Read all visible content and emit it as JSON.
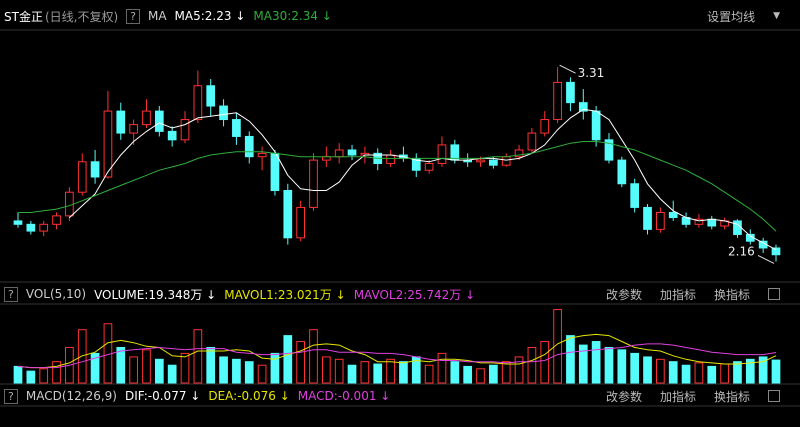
{
  "chart_data": [
    {
      "type": "candlestick",
      "title": "ST金正",
      "subtitle": "(日线,不复权)",
      "help": "?",
      "indicator": "MA",
      "settings": "设置均线",
      "up_color": "#ff3232",
      "down_color": "#54fcfc",
      "ylim": [
        2.08,
        3.53
      ],
      "candles": [
        [
          2.4,
          2.45,
          2.36,
          2.38
        ],
        [
          2.38,
          2.4,
          2.32,
          2.34
        ],
        [
          2.34,
          2.4,
          2.31,
          2.38
        ],
        [
          2.38,
          2.45,
          2.35,
          2.43
        ],
        [
          2.43,
          2.6,
          2.4,
          2.57
        ],
        [
          2.57,
          2.8,
          2.55,
          2.75
        ],
        [
          2.75,
          2.82,
          2.62,
          2.66
        ],
        [
          2.66,
          3.17,
          2.65,
          3.05
        ],
        [
          3.05,
          3.1,
          2.88,
          2.92
        ],
        [
          2.92,
          3.0,
          2.85,
          2.97
        ],
        [
          2.97,
          3.12,
          2.95,
          3.05
        ],
        [
          3.05,
          3.08,
          2.9,
          2.93
        ],
        [
          2.93,
          2.96,
          2.84,
          2.88
        ],
        [
          2.88,
          3.05,
          2.86,
          3.0
        ],
        [
          3.0,
          3.29,
          2.98,
          3.2
        ],
        [
          3.2,
          3.24,
          3.02,
          3.08
        ],
        [
          3.08,
          3.12,
          2.96,
          3.0
        ],
        [
          3.0,
          3.04,
          2.85,
          2.9
        ],
        [
          2.9,
          2.93,
          2.74,
          2.78
        ],
        [
          2.78,
          2.84,
          2.7,
          2.8
        ],
        [
          2.8,
          2.82,
          2.55,
          2.58
        ],
        [
          2.58,
          2.62,
          2.26,
          2.3
        ],
        [
          2.3,
          2.52,
          2.28,
          2.48
        ],
        [
          2.48,
          2.8,
          2.46,
          2.76
        ],
        [
          2.76,
          2.84,
          2.72,
          2.78
        ],
        [
          2.78,
          2.86,
          2.74,
          2.82
        ],
        [
          2.82,
          2.85,
          2.76,
          2.79
        ],
        [
          2.79,
          2.84,
          2.74,
          2.8
        ],
        [
          2.8,
          2.83,
          2.7,
          2.74
        ],
        [
          2.74,
          2.82,
          2.72,
          2.79
        ],
        [
          2.79,
          2.84,
          2.75,
          2.77
        ],
        [
          2.77,
          2.8,
          2.66,
          2.7
        ],
        [
          2.7,
          2.76,
          2.68,
          2.74
        ],
        [
          2.74,
          2.9,
          2.72,
          2.85
        ],
        [
          2.85,
          2.88,
          2.74,
          2.76
        ],
        [
          2.76,
          2.8,
          2.72,
          2.75
        ],
        [
          2.75,
          2.78,
          2.72,
          2.76
        ],
        [
          2.76,
          2.78,
          2.71,
          2.73
        ],
        [
          2.73,
          2.8,
          2.72,
          2.78
        ],
        [
          2.78,
          2.85,
          2.76,
          2.82
        ],
        [
          2.82,
          2.95,
          2.8,
          2.92
        ],
        [
          2.92,
          3.05,
          2.9,
          3.0
        ],
        [
          3.0,
          3.31,
          2.98,
          3.22
        ],
        [
          3.22,
          3.25,
          3.05,
          3.1
        ],
        [
          3.1,
          3.18,
          3.0,
          3.05
        ],
        [
          3.05,
          3.08,
          2.84,
          2.88
        ],
        [
          2.88,
          2.92,
          2.74,
          2.76
        ],
        [
          2.76,
          2.78,
          2.6,
          2.62
        ],
        [
          2.62,
          2.65,
          2.45,
          2.48
        ],
        [
          2.48,
          2.5,
          2.32,
          2.35
        ],
        [
          2.35,
          2.48,
          2.33,
          2.45
        ],
        [
          2.45,
          2.52,
          2.4,
          2.42
        ],
        [
          2.42,
          2.45,
          2.36,
          2.38
        ],
        [
          2.38,
          2.44,
          2.36,
          2.41
        ],
        [
          2.41,
          2.43,
          2.35,
          2.37
        ],
        [
          2.37,
          2.42,
          2.35,
          2.4
        ],
        [
          2.4,
          2.41,
          2.3,
          2.32
        ],
        [
          2.32,
          2.35,
          2.26,
          2.28
        ],
        [
          2.28,
          2.3,
          2.21,
          2.24
        ],
        [
          2.24,
          2.26,
          2.16,
          2.2
        ]
      ],
      "series": [
        {
          "name": "MA5:2.23 ↓",
          "color": "#ffffff",
          "values": [
            null,
            null,
            null,
            null,
            2.42,
            2.49,
            2.56,
            2.69,
            2.79,
            2.87,
            2.93,
            2.98,
            2.95,
            2.97,
            3.01,
            3.02,
            3.03,
            3.04,
            2.99,
            2.91,
            2.81,
            2.67,
            2.59,
            2.58,
            2.58,
            2.63,
            2.73,
            2.79,
            2.79,
            2.79,
            2.78,
            2.76,
            2.75,
            2.77,
            2.76,
            2.76,
            2.77,
            2.77,
            2.76,
            2.77,
            2.8,
            2.85,
            2.94,
            3.01,
            3.06,
            3.05,
            3.0,
            2.88,
            2.76,
            2.62,
            2.53,
            2.46,
            2.42,
            2.4,
            2.41,
            2.4,
            2.38,
            2.31,
            2.27,
            2.23
          ]
        },
        {
          "name": "MA30:2.34 ↓",
          "color": "#2fae3a",
          "values": [
            2.45,
            2.45,
            2.46,
            2.47,
            2.49,
            2.52,
            2.55,
            2.58,
            2.61,
            2.64,
            2.67,
            2.7,
            2.72,
            2.74,
            2.77,
            2.79,
            2.8,
            2.81,
            2.81,
            2.81,
            2.8,
            2.79,
            2.78,
            2.78,
            2.78,
            2.78,
            2.78,
            2.78,
            2.77,
            2.77,
            2.77,
            2.77,
            2.77,
            2.77,
            2.77,
            2.77,
            2.77,
            2.78,
            2.78,
            2.79,
            2.8,
            2.82,
            2.84,
            2.86,
            2.87,
            2.87,
            2.86,
            2.84,
            2.82,
            2.79,
            2.76,
            2.73,
            2.7,
            2.66,
            2.62,
            2.57,
            2.52,
            2.47,
            2.41,
            2.34
          ]
        }
      ]
    },
    {
      "type": "bar",
      "title": "VOL(5,10)",
      "help": "?",
      "volume_label": "VOLUME:19.348万 ↓",
      "buttons": [
        "改参数",
        "加指标",
        "换指标"
      ],
      "ylim": [
        0,
        65
      ],
      "values": [
        14,
        10,
        12,
        18,
        30,
        45,
        25,
        50,
        30,
        22,
        28,
        20,
        15,
        25,
        45,
        30,
        22,
        20,
        18,
        15,
        25,
        40,
        35,
        45,
        22,
        20,
        15,
        18,
        16,
        20,
        18,
        22,
        15,
        25,
        18,
        14,
        12,
        15,
        18,
        22,
        30,
        35,
        62,
        40,
        32,
        35,
        30,
        28,
        25,
        22,
        20,
        18,
        15,
        17,
        14,
        16,
        18,
        20,
        22,
        19.348
      ],
      "series": [
        {
          "name": "MAVOL1:23.021万 ↓",
          "color": "#e6e600",
          "values": [
            14,
            13,
            13,
            14,
            17,
            23,
            26,
            34,
            36,
            34,
            31,
            30,
            23,
            22,
            27,
            27,
            27,
            28,
            27,
            21,
            20,
            24,
            27,
            32,
            33,
            32,
            27,
            24,
            18,
            18,
            17,
            19,
            18,
            20,
            20,
            19,
            17,
            17,
            16,
            16,
            19,
            24,
            33,
            38,
            40,
            41,
            40,
            35,
            30,
            28,
            27,
            23,
            20,
            18,
            17,
            16,
            16,
            17,
            18,
            23.021
          ]
        },
        {
          "name": "MAVOL2:25.742万 ↓",
          "color": "#e040e0",
          "values": [
            14,
            13,
            13,
            13,
            15,
            18,
            21,
            24,
            27,
            28,
            29,
            30,
            29,
            28,
            29,
            29,
            29,
            26,
            25,
            24,
            24,
            25,
            26,
            28,
            28,
            26,
            26,
            26,
            25,
            25,
            24,
            22,
            20,
            19,
            19,
            18,
            18,
            18,
            17,
            18,
            18,
            19,
            24,
            26,
            27,
            28,
            29,
            30,
            32,
            33,
            33,
            32,
            30,
            28,
            26,
            25,
            24,
            24,
            24,
            25.742
          ]
        }
      ]
    },
    {
      "type": "macd",
      "title": "MACD(12,26,9)",
      "help": "?",
      "buttons": [
        "改参数",
        "加指标",
        "换指标"
      ],
      "legend": [
        {
          "name": "DIF:-0.077 ↓",
          "color": "#ffffff"
        },
        {
          "name": "DEA:-0.076 ↓",
          "color": "#e6e600"
        },
        {
          "name": "MACD:-0.001 ↓",
          "color": "#e040e0"
        }
      ]
    }
  ]
}
